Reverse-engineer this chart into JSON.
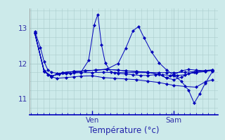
{
  "background_color": "#cceaea",
  "grid_color": "#aacccc",
  "line_color": "#0000bb",
  "marker_color": "#0000bb",
  "axis_color": "#0000bb",
  "tick_label_color": "#3333aa",
  "xlabel": "Température (°c)",
  "xlabel_color": "#2222aa",
  "xtick_labels": [
    "Ven",
    "Sam"
  ],
  "xtick_positions": [
    0.33,
    0.77
  ],
  "ytick_labels": [
    "11",
    "12",
    "13"
  ],
  "ytick_values": [
    11,
    12,
    13
  ],
  "ylim": [
    10.55,
    13.55
  ],
  "xlim": [
    -0.01,
    1.01
  ],
  "series": [
    [
      0.02,
      12.9,
      0.05,
      12.45,
      0.07,
      12.05,
      0.09,
      11.82,
      0.11,
      11.75,
      0.14,
      11.72,
      0.19,
      11.72,
      0.23,
      11.73,
      0.27,
      11.74,
      0.33,
      11.74,
      0.39,
      11.75,
      0.45,
      11.74,
      0.51,
      11.74,
      0.57,
      11.74,
      0.63,
      11.74,
      0.69,
      11.74,
      0.73,
      11.74,
      0.77,
      11.74,
      0.83,
      11.75,
      0.89,
      11.77,
      0.94,
      11.8,
      0.98,
      11.82
    ],
    [
      0.02,
      12.85,
      0.07,
      11.8,
      0.09,
      11.68,
      0.11,
      11.62,
      0.14,
      11.58,
      0.19,
      11.6,
      0.23,
      11.62,
      0.27,
      11.64,
      0.33,
      11.65,
      0.39,
      11.6,
      0.45,
      11.58,
      0.51,
      11.56,
      0.57,
      11.54,
      0.63,
      11.5,
      0.69,
      11.46,
      0.73,
      11.42,
      0.77,
      11.38,
      0.83,
      11.35,
      0.89,
      11.33,
      0.94,
      11.48,
      0.98,
      11.54
    ],
    [
      0.02,
      12.85,
      0.07,
      11.78,
      0.11,
      11.64,
      0.15,
      11.7,
      0.21,
      11.72,
      0.27,
      11.76,
      0.31,
      12.08,
      0.34,
      13.08,
      0.36,
      13.38,
      0.38,
      12.52,
      0.4,
      12.02,
      0.43,
      11.76,
      0.47,
      11.72,
      0.51,
      11.7,
      0.55,
      11.68,
      0.59,
      11.66,
      0.63,
      11.66,
      0.67,
      11.68,
      0.71,
      11.68,
      0.75,
      11.66,
      0.79,
      11.66,
      0.83,
      11.68,
      0.88,
      11.76,
      0.94,
      11.78,
      0.98,
      11.8
    ],
    [
      0.02,
      12.85,
      0.07,
      11.78,
      0.11,
      11.64,
      0.17,
      11.74,
      0.23,
      11.77,
      0.29,
      11.79,
      0.35,
      11.81,
      0.41,
      11.84,
      0.47,
      12.0,
      0.51,
      12.42,
      0.55,
      12.92,
      0.58,
      13.04,
      0.61,
      12.72,
      0.65,
      12.32,
      0.69,
      12.02,
      0.73,
      11.82,
      0.77,
      11.66,
      0.81,
      11.5,
      0.85,
      11.24,
      0.88,
      10.88,
      0.91,
      11.14,
      0.94,
      11.44,
      0.98,
      11.78
    ],
    [
      0.02,
      12.85,
      0.07,
      11.78,
      0.11,
      11.64,
      0.17,
      11.74,
      0.23,
      11.77,
      0.29,
      11.79,
      0.35,
      11.81,
      0.41,
      11.83,
      0.47,
      11.81,
      0.51,
      11.79,
      0.57,
      11.77,
      0.63,
      11.75,
      0.69,
      11.69,
      0.73,
      11.59,
      0.77,
      11.54,
      0.81,
      11.61,
      0.85,
      11.71,
      0.89,
      11.74,
      0.94,
      11.77,
      0.98,
      11.81
    ],
    [
      0.02,
      12.85,
      0.07,
      11.78,
      0.11,
      11.64,
      0.17,
      11.74,
      0.23,
      11.77,
      0.29,
      11.79,
      0.35,
      11.81,
      0.41,
      11.83,
      0.47,
      11.81,
      0.51,
      11.79,
      0.57,
      11.77,
      0.63,
      11.75,
      0.69,
      11.69,
      0.73,
      11.59,
      0.77,
      11.67,
      0.81,
      11.79,
      0.85,
      11.83,
      0.89,
      11.81,
      0.94,
      11.79,
      0.98,
      11.81
    ]
  ]
}
